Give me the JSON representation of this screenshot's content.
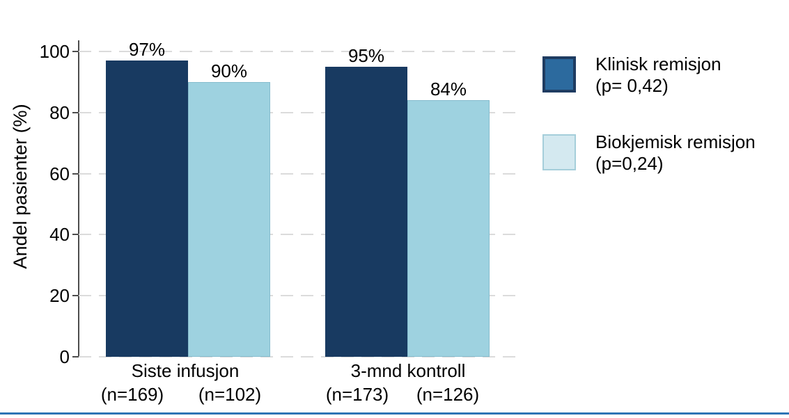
{
  "chart_data": {
    "type": "bar",
    "title": "",
    "ylabel": "Andel pasienter (%)",
    "ylim": [
      0,
      100
    ],
    "yticks": [
      0,
      20,
      40,
      60,
      80,
      100
    ],
    "grid": "horizontal-dashed",
    "legend_position": "right",
    "categories": [
      "Siste infusjon",
      "3-mnd kontroll"
    ],
    "n_labels": [
      [
        "(n=169)",
        "(n=102)"
      ],
      [
        "(n=173)",
        "(n=126)"
      ]
    ],
    "series": [
      {
        "name": "Klinisk remisjon",
        "p_label": "(p= 0,42)",
        "values": [
          97,
          95
        ],
        "value_labels": [
          "97%",
          "95%"
        ],
        "color": "#183A61",
        "legend_swatch_color": "#2C6A9E",
        "legend_swatch_border": "#1F3C61",
        "legend_swatch_border_width": 4
      },
      {
        "name": "Biokjemisk remisjon",
        "p_label": "(p=0,24)",
        "values": [
          90,
          84
        ],
        "value_labels": [
          "90%",
          "84%"
        ],
        "color": "#9ED2E0",
        "bar_border": "#85BCCE",
        "legend_swatch_color": "#D4E9F0",
        "legend_swatch_border": "#A5CEDA",
        "legend_swatch_border_width": 2
      }
    ]
  },
  "colors": {
    "axis": "#4D4D4D",
    "gridline": "#DBDBDB",
    "text": "#000000",
    "bottom_rule": "#2E74B5",
    "background": "#FFFFFF"
  }
}
